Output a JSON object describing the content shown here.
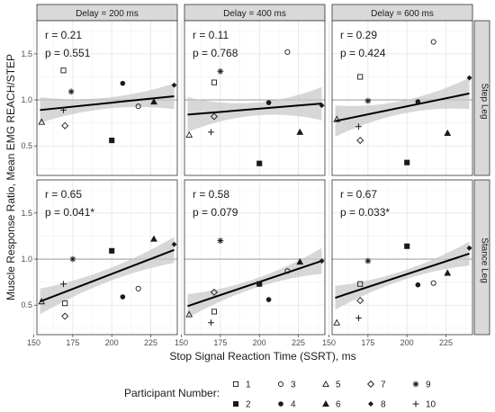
{
  "chart_data": {
    "type": "scatter",
    "facet_columns": [
      "Delay = 200 ms",
      "Delay = 400 ms",
      "Delay = 600 ms"
    ],
    "facet_rows": [
      "Step Leg",
      "Stance Leg"
    ],
    "xlabel": "Stop Signal Reaction Time (SSRT), ms",
    "ylabel": "Muscle Response Ratio, Mean EMG REACH/STEP",
    "xlim": [
      152,
      242
    ],
    "ylim": [
      0.18,
      1.86
    ],
    "x_ticks": [
      "150",
      "175",
      "200",
      "225"
    ],
    "y_ticks": [
      "0.5",
      "1.0",
      "1.5"
    ],
    "reference_line_y": 1.0,
    "legend": {
      "title": "Participant Number:",
      "position": "bottom",
      "entries": [
        {
          "id": "1",
          "label": "1",
          "shape": "square-open"
        },
        {
          "id": "2",
          "label": "2",
          "shape": "square-filled"
        },
        {
          "id": "3",
          "label": "3",
          "shape": "circle-open"
        },
        {
          "id": "4",
          "label": "4",
          "shape": "circle-filled"
        },
        {
          "id": "5",
          "label": "5",
          "shape": "triangle-open"
        },
        {
          "id": "6",
          "label": "6",
          "shape": "triangle-filled"
        },
        {
          "id": "7",
          "label": "7",
          "shape": "diamond-open"
        },
        {
          "id": "8",
          "label": "8",
          "shape": "diamond-filled"
        },
        {
          "id": "9",
          "label": "9",
          "shape": "asterisk"
        },
        {
          "id": "10",
          "label": "10",
          "shape": "plus"
        }
      ]
    },
    "panels": [
      {
        "column": "Delay = 200 ms",
        "row": "Step Leg",
        "stat_r": "r = 0.21",
        "stat_p": "p = 0.551",
        "fit": {
          "x": [
            154,
            240
          ],
          "y": [
            0.89,
            1.04
          ]
        },
        "band_halfwidth": [
          0.14,
          0.06,
          0.14
        ],
        "points": [
          {
            "id": "1",
            "x": 169,
            "y": 1.32
          },
          {
            "id": "2",
            "x": 200,
            "y": 0.56
          },
          {
            "id": "3",
            "x": 217,
            "y": 0.93
          },
          {
            "id": "4",
            "x": 207,
            "y": 1.18
          },
          {
            "id": "5",
            "x": 155,
            "y": 0.76
          },
          {
            "id": "6",
            "x": 227,
            "y": 0.98
          },
          {
            "id": "7",
            "x": 170,
            "y": 0.72
          },
          {
            "id": "8",
            "x": 240,
            "y": 1.16
          },
          {
            "id": "9",
            "x": 174,
            "y": 1.09
          },
          {
            "id": "10",
            "x": 169,
            "y": 0.89
          }
        ]
      },
      {
        "column": "Delay = 400 ms",
        "row": "Step Leg",
        "stat_r": "r = 0.11",
        "stat_p": "p = 0.768",
        "fit": {
          "x": [
            154,
            240
          ],
          "y": [
            0.84,
            0.96
          ]
        },
        "band_halfwidth": [
          0.19,
          0.07,
          0.18
        ],
        "points": [
          {
            "id": "1",
            "x": 171,
            "y": 1.19
          },
          {
            "id": "2",
            "x": 200,
            "y": 0.31
          },
          {
            "id": "3",
            "x": 218,
            "y": 1.52
          },
          {
            "id": "4",
            "x": 206,
            "y": 0.97
          },
          {
            "id": "5",
            "x": 155,
            "y": 0.62
          },
          {
            "id": "6",
            "x": 226,
            "y": 0.65
          },
          {
            "id": "7",
            "x": 171,
            "y": 0.82
          },
          {
            "id": "8",
            "x": 240,
            "y": 0.94
          },
          {
            "id": "9",
            "x": 175,
            "y": 1.31
          },
          {
            "id": "10",
            "x": 169,
            "y": 0.65
          }
        ]
      },
      {
        "column": "Delay = 600 ms",
        "row": "Step Leg",
        "stat_r": "r = 0.29",
        "stat_p": "p = 0.424",
        "fit": {
          "x": [
            154,
            240
          ],
          "y": [
            0.77,
            1.07
          ]
        },
        "band_halfwidth": [
          0.17,
          0.07,
          0.17
        ],
        "points": [
          {
            "id": "1",
            "x": 170,
            "y": 1.25
          },
          {
            "id": "2",
            "x": 200,
            "y": 0.32
          },
          {
            "id": "3",
            "x": 217,
            "y": 1.63
          },
          {
            "id": "4",
            "x": 207,
            "y": 0.98
          },
          {
            "id": "5",
            "x": 155,
            "y": 0.79
          },
          {
            "id": "6",
            "x": 226,
            "y": 0.64
          },
          {
            "id": "7",
            "x": 170,
            "y": 0.56
          },
          {
            "id": "8",
            "x": 240,
            "y": 1.24
          },
          {
            "id": "9",
            "x": 175,
            "y": 0.99
          },
          {
            "id": "10",
            "x": 169,
            "y": 0.71
          }
        ]
      },
      {
        "column": "Delay = 200 ms",
        "row": "Stance Leg",
        "stat_r": "r = 0.65",
        "stat_p": "p = 0.041*",
        "fit": {
          "x": [
            154,
            240
          ],
          "y": [
            0.54,
            1.1
          ]
        },
        "band_halfwidth": [
          0.14,
          0.07,
          0.14
        ],
        "points": [
          {
            "id": "1",
            "x": 170,
            "y": 0.52
          },
          {
            "id": "2",
            "x": 200,
            "y": 1.09
          },
          {
            "id": "3",
            "x": 217,
            "y": 0.68
          },
          {
            "id": "4",
            "x": 207,
            "y": 0.59
          },
          {
            "id": "5",
            "x": 155,
            "y": 0.54
          },
          {
            "id": "6",
            "x": 227,
            "y": 1.22
          },
          {
            "id": "7",
            "x": 170,
            "y": 0.38
          },
          {
            "id": "8",
            "x": 240,
            "y": 1.16
          },
          {
            "id": "9",
            "x": 175,
            "y": 1.0
          },
          {
            "id": "10",
            "x": 169,
            "y": 0.73
          }
        ]
      },
      {
        "column": "Delay = 400 ms",
        "row": "Stance Leg",
        "stat_r": "r = 0.58",
        "stat_p": "p = 0.079",
        "fit": {
          "x": [
            154,
            240
          ],
          "y": [
            0.49,
            0.98
          ]
        },
        "band_halfwidth": [
          0.13,
          0.05,
          0.14
        ],
        "points": [
          {
            "id": "1",
            "x": 171,
            "y": 0.43
          },
          {
            "id": "2",
            "x": 200,
            "y": 0.73
          },
          {
            "id": "3",
            "x": 218,
            "y": 0.87
          },
          {
            "id": "4",
            "x": 206,
            "y": 0.56
          },
          {
            "id": "5",
            "x": 155,
            "y": 0.4
          },
          {
            "id": "6",
            "x": 226,
            "y": 0.97
          },
          {
            "id": "7",
            "x": 171,
            "y": 0.64
          },
          {
            "id": "8",
            "x": 240,
            "y": 0.98
          },
          {
            "id": "9",
            "x": 175,
            "y": 1.2
          },
          {
            "id": "10",
            "x": 169,
            "y": 0.31
          }
        ]
      },
      {
        "column": "Delay = 600 ms",
        "row": "Stance Leg",
        "stat_r": "r = 0.67",
        "stat_p": "p = 0.033*",
        "fit": {
          "x": [
            154,
            240
          ],
          "y": [
            0.58,
            1.06
          ]
        },
        "band_halfwidth": [
          0.13,
          0.05,
          0.13
        ],
        "points": [
          {
            "id": "1",
            "x": 170,
            "y": 0.73
          },
          {
            "id": "2",
            "x": 200,
            "y": 1.14
          },
          {
            "id": "3",
            "x": 217,
            "y": 0.74
          },
          {
            "id": "4",
            "x": 207,
            "y": 0.72
          },
          {
            "id": "5",
            "x": 155,
            "y": 0.31
          },
          {
            "id": "6",
            "x": 226,
            "y": 0.85
          },
          {
            "id": "7",
            "x": 170,
            "y": 0.55
          },
          {
            "id": "8",
            "x": 240,
            "y": 1.12
          },
          {
            "id": "9",
            "x": 175,
            "y": 0.98
          },
          {
            "id": "10",
            "x": 169,
            "y": 0.36
          }
        ]
      }
    ]
  }
}
